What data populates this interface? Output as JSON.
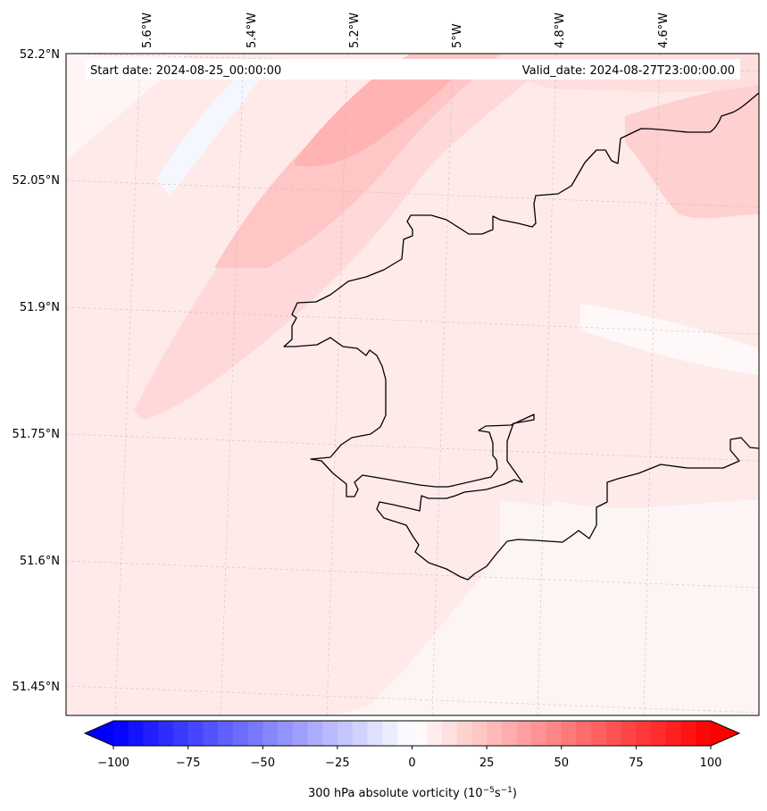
{
  "map": {
    "start_date": "Start date: 2024-08-25_00:00:00",
    "valid_date": "Valid_date: 2024-08-27T23:00:00.00",
    "lon_labels": [
      "5.6°W",
      "5.4°W",
      "5.2°W",
      "5°W",
      "4.8°W",
      "4.6°W"
    ],
    "lat_labels": [
      "52.2°N",
      "52.05°N",
      "51.9°N",
      "51.75°N",
      "51.6°N",
      "51.45°N"
    ]
  },
  "colorbar": {
    "min": -100,
    "max": 100,
    "extend": "both",
    "ticks": [
      -100,
      -75,
      -50,
      -25,
      0,
      25,
      50,
      75,
      100
    ],
    "tick_labels": [
      "−100",
      "−75",
      "−50",
      "−25",
      "0",
      "25",
      "50",
      "75",
      "100"
    ],
    "label_main": "300 hPa absolute vorticity (10",
    "label_exp1": "−5",
    "label_mid": "s",
    "label_exp2": "−1",
    "label_end": ")",
    "colors": {
      "low": "#0000ff",
      "mid": "#ffffff",
      "high": "#ff0000"
    }
  }
}
